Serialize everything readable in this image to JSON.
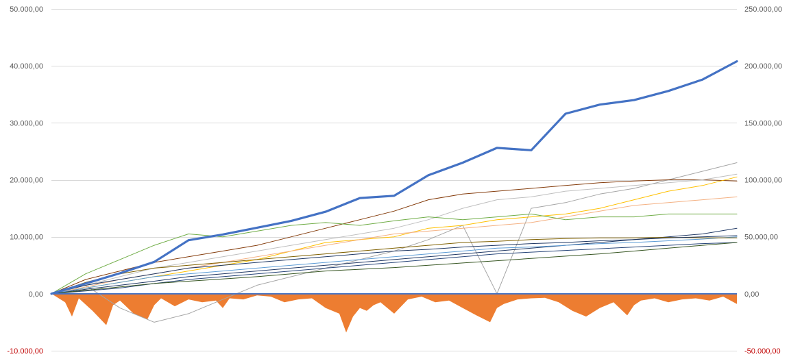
{
  "chart_data": {
    "type": "line",
    "title": "",
    "xlabel": "",
    "ylabel": "",
    "grid": true,
    "legend": "none",
    "y_left": {
      "lim": [
        -10000,
        50000
      ],
      "ticks": [
        50000,
        40000,
        30000,
        20000,
        10000,
        0,
        -10000
      ],
      "tick_labels": [
        "50.000,00",
        "40.000,00",
        "30.000,00",
        "20.000,00",
        "10.000,00",
        "0,00",
        "-10.000,00"
      ]
    },
    "y_right": {
      "lim": [
        -50000,
        250000
      ],
      "ticks": [
        250000,
        200000,
        150000,
        100000,
        50000,
        0,
        -50000
      ],
      "tick_labels": [
        "250.000,00",
        "200.000,00",
        "150.000,00",
        "100.000,00",
        "50.000,00",
        "0,00",
        "-50.000,00"
      ]
    },
    "colors": {
      "negative_tick": "#c00000",
      "tick": "#595959",
      "grid": "#d9d9d9"
    },
    "x": [
      0,
      5,
      10,
      15,
      20,
      25,
      30,
      35,
      40,
      45,
      50,
      55,
      60,
      65,
      70,
      75,
      80,
      85,
      90,
      95,
      100
    ],
    "series": [
      {
        "axis": "right",
        "color": "#4472c4",
        "width": 3.2,
        "values": [
          0,
          9000,
          18000,
          28000,
          47000,
          52000,
          58000,
          64000,
          72000,
          84000,
          86000,
          104000,
          115000,
          128000,
          126000,
          158000,
          166000,
          170000,
          178000,
          188000,
          204000
        ]
      },
      {
        "axis": "left",
        "color": "#a5a5a5",
        "width": 1,
        "values": [
          0,
          1500,
          -2500,
          -5000,
          -3500,
          -1000,
          1500,
          3000,
          4500,
          6000,
          7500,
          9500,
          12000,
          0,
          15000,
          16000,
          17500,
          18500,
          20000,
          21500,
          23000
        ]
      },
      {
        "axis": "left",
        "color": "#843c0c",
        "width": 1,
        "values": [
          0,
          2500,
          4000,
          5500,
          6500,
          7500,
          8500,
          10000,
          11500,
          13000,
          14500,
          16500,
          17500,
          18000,
          18500,
          19000,
          19500,
          19800,
          20000,
          20000,
          19800
        ]
      },
      {
        "axis": "left",
        "color": "#ffc000",
        "width": 1,
        "values": [
          0,
          1000,
          2000,
          3000,
          4000,
          5000,
          6000,
          7500,
          9000,
          9500,
          10000,
          11500,
          12000,
          13000,
          13500,
          14000,
          15000,
          16500,
          18000,
          19000,
          20500
        ]
      },
      {
        "axis": "left",
        "color": "#bfbfbf",
        "width": 1,
        "values": [
          0,
          1500,
          3000,
          4500,
          5500,
          6500,
          7500,
          8500,
          9500,
          10500,
          11500,
          13000,
          15000,
          16500,
          17000,
          18000,
          18500,
          19000,
          19500,
          20000,
          21000
        ]
      },
      {
        "axis": "left",
        "color": "#f4b183",
        "width": 1,
        "values": [
          0,
          1200,
          2500,
          3500,
          4500,
          5500,
          6500,
          7500,
          8500,
          9500,
          10500,
          11000,
          11500,
          12000,
          12500,
          13500,
          14500,
          15500,
          16000,
          16500,
          17000
        ]
      },
      {
        "axis": "left",
        "color": "#70ad47",
        "width": 1,
        "values": [
          0,
          3500,
          6000,
          8500,
          10500,
          10000,
          11000,
          12000,
          12500,
          12000,
          12800,
          13500,
          13000,
          13500,
          14000,
          13000,
          13500,
          13500,
          14000,
          14000,
          14000
        ]
      },
      {
        "axis": "left",
        "color": "#203864",
        "width": 1,
        "values": [
          0,
          800,
          1500,
          2200,
          3000,
          3500,
          4000,
          4500,
          5000,
          5500,
          6000,
          6500,
          7000,
          7500,
          8000,
          8500,
          9000,
          9500,
          10000,
          10500,
          11500
        ]
      },
      {
        "axis": "left",
        "color": "#5b9bd5",
        "width": 1,
        "values": [
          0,
          1000,
          2000,
          3000,
          3500,
          4000,
          4500,
          5000,
          5500,
          6000,
          6500,
          7000,
          7500,
          8000,
          8200,
          8500,
          8800,
          9000,
          9300,
          9600,
          10000
        ]
      },
      {
        "axis": "left",
        "color": "#7f6000",
        "width": 1,
        "values": [
          0,
          2000,
          3500,
          4500,
          5000,
          5500,
          6000,
          6500,
          7000,
          7500,
          8000,
          8500,
          9000,
          9200,
          9500,
          9700,
          9800,
          9800,
          9900,
          9800,
          9800
        ]
      },
      {
        "axis": "left",
        "color": "#264478",
        "width": 1,
        "values": [
          0,
          500,
          1000,
          1800,
          2500,
          3000,
          3500,
          4000,
          4500,
          5000,
          5500,
          6000,
          6500,
          7000,
          7300,
          7600,
          7900,
          8200,
          8500,
          8800,
          9000
        ]
      },
      {
        "axis": "left",
        "color": "#375623",
        "width": 1,
        "values": [
          0,
          600,
          1200,
          1800,
          2200,
          2600,
          3000,
          3500,
          4000,
          4300,
          4600,
          5000,
          5400,
          5800,
          6200,
          6600,
          7000,
          7500,
          8000,
          8500,
          9000
        ]
      },
      {
        "axis": "left",
        "color": "#1f3864",
        "width": 1,
        "values": [
          0,
          1500,
          2500,
          3500,
          4500,
          5000,
          5500,
          6000,
          6500,
          7000,
          7500,
          7800,
          8200,
          8500,
          8800,
          9000,
          9300,
          9500,
          9800,
          10000,
          10200
        ]
      }
    ],
    "drawdown": {
      "axis": "left",
      "color": "#ed7d31",
      "x": [
        0,
        2,
        3,
        4,
        6,
        8,
        9,
        10,
        12,
        14,
        15,
        16,
        18,
        20,
        22,
        24,
        25,
        26,
        28,
        30,
        32,
        34,
        36,
        38,
        40,
        42,
        43,
        44,
        45,
        46,
        47,
        48,
        50,
        52,
        54,
        56,
        58,
        60,
        62,
        64,
        65,
        66,
        68,
        70,
        72,
        74,
        76,
        78,
        80,
        82,
        84,
        85,
        86,
        88,
        90,
        92,
        94,
        96,
        98,
        100
      ],
      "values": [
        0,
        -1500,
        -4000,
        -800,
        -3000,
        -5500,
        -2000,
        -1200,
        -3500,
        -4500,
        -2000,
        -800,
        -2200,
        -1000,
        -1500,
        -1200,
        -2500,
        -800,
        -1000,
        -300,
        -500,
        -1500,
        -1000,
        -800,
        -2500,
        -3500,
        -6800,
        -4000,
        -2500,
        -3000,
        -2000,
        -1500,
        -3500,
        -1000,
        -500,
        -1500,
        -1200,
        -2500,
        -3800,
        -5000,
        -2500,
        -1800,
        -1000,
        -800,
        -700,
        -1500,
        -3000,
        -4000,
        -2500,
        -1500,
        -3800,
        -2000,
        -1200,
        -800,
        -1500,
        -1000,
        -800,
        -1200,
        -500,
        -1800
      ]
    }
  }
}
